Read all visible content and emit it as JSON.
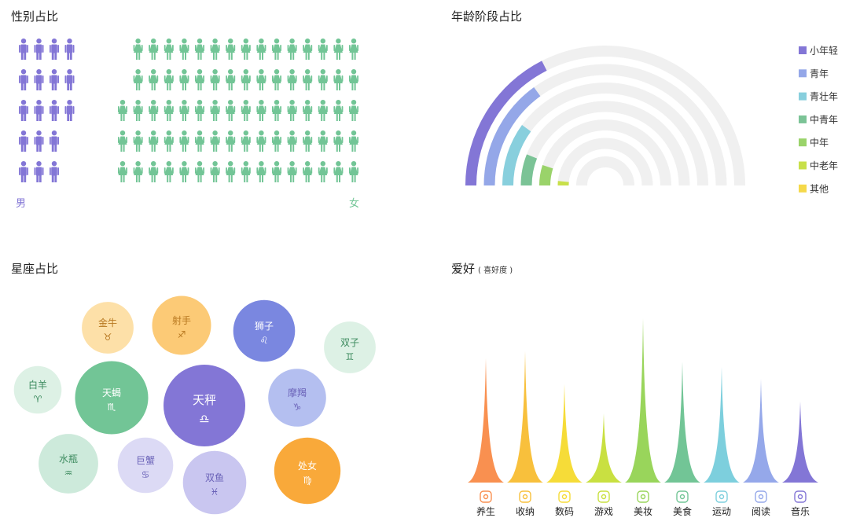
{
  "colors": {
    "male": "#8376d6",
    "female": "#72c596",
    "track": "#f0f0f0"
  },
  "gender": {
    "title": "性别占比",
    "male_label": "男",
    "female_label": "女"
  },
  "age": {
    "title": "年龄阶段占比"
  },
  "zodiac": {
    "title": "星座占比"
  },
  "hobby": {
    "title": "爱好",
    "subtitle": "( 喜好度 )"
  },
  "chart_data": [
    {
      "type": "pictograph",
      "title": "性别占比",
      "series": [
        {
          "name": "男",
          "count": 18,
          "color": "#8376d6",
          "icon": "male-person-icon"
        },
        {
          "name": "女",
          "count": 78,
          "color": "#72c596",
          "icon": "female-person-icon"
        }
      ]
    },
    {
      "type": "radial-bar",
      "title": "年龄阶段占比",
      "legend_position": "right",
      "categories": [
        "小年轻",
        "青年",
        "青壮年",
        "中青年",
        "中年",
        "中老年",
        "其他"
      ],
      "values": [
        0.35,
        0.3,
        0.2,
        0.12,
        0.1,
        0.03,
        0.0
      ],
      "value_max": 1,
      "colors": [
        "#8376d6",
        "#94a7e8",
        "#88cfdd",
        "#7bc396",
        "#9ad36a",
        "#c8e04a",
        "#f5d94a"
      ]
    },
    {
      "type": "bubble",
      "title": "星座占比",
      "items": [
        {
          "name": "天秤",
          "symbol": "♎",
          "value": 100,
          "color": "#8376d6"
        },
        {
          "name": "天蝎",
          "symbol": "♏",
          "value": 80,
          "color": "#72c596"
        },
        {
          "name": "双鱼",
          "symbol": "♓",
          "value": 60,
          "color": "#c9c6f0"
        },
        {
          "name": "狮子",
          "symbol": "♌",
          "value": 57,
          "color": "#7a87e0"
        },
        {
          "name": "处女",
          "symbol": "♍",
          "value": 66,
          "color": "#f9a93a"
        },
        {
          "name": "射手",
          "symbol": "♐",
          "value": 52,
          "color": "#fcca76"
        },
        {
          "name": "摩羯",
          "symbol": "♑",
          "value": 50,
          "color": "#b4bff0"
        },
        {
          "name": "水瓶",
          "symbol": "♒",
          "value": 53,
          "color": "#cdeadb"
        },
        {
          "name": "巨蟹",
          "symbol": "♋",
          "value": 46,
          "color": "#dcdaf5"
        },
        {
          "name": "金牛",
          "symbol": "♉",
          "value": 40,
          "color": "#fde0a8"
        },
        {
          "name": "双子",
          "symbol": "♊",
          "value": 40,
          "color": "#ddf1e5"
        },
        {
          "name": "白羊",
          "symbol": "♈",
          "value": 34,
          "color": "#ddf1e5"
        }
      ]
    },
    {
      "type": "bar",
      "title": "爱好",
      "subtitle": "( 喜好度 )",
      "categories": [
        "养生",
        "收纳",
        "数码",
        "游戏",
        "美妆",
        "美食",
        "运动",
        "阅读",
        "音乐"
      ],
      "values": [
        72,
        76,
        57,
        40,
        95,
        70,
        67,
        60,
        47
      ],
      "ylim": [
        0,
        100
      ],
      "colors": [
        "#f99050",
        "#f8c03c",
        "#f6dc38",
        "#c9e041",
        "#99d55b",
        "#72c596",
        "#7dcfdd",
        "#95a8ea",
        "#8376d6"
      ],
      "icons": [
        "leaf-icon",
        "tent-icon",
        "camera-icon",
        "gamepad-icon",
        "lipstick-icon",
        "dish-icon",
        "fitness-icon",
        "book-icon",
        "headphones-icon"
      ]
    }
  ]
}
